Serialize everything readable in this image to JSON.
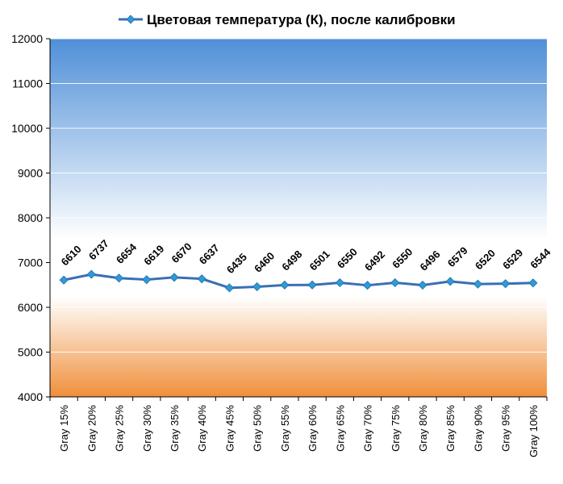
{
  "chart_data": {
    "type": "line",
    "title": "Цветовая температура (К), после калибровки",
    "xlabel": "",
    "ylabel": "",
    "ylim": [
      4000,
      12000
    ],
    "y_ticks": [
      4000,
      5000,
      6000,
      7000,
      8000,
      9000,
      10000,
      11000,
      12000
    ],
    "categories": [
      "Gray 15%",
      "Gray 20%",
      "Gray 25%",
      "Gray 30%",
      "Gray 35%",
      "Gray 40%",
      "Gray 45%",
      "Gray 50%",
      "Gray 55%",
      "Gray 60%",
      "Gray 65%",
      "Gray 70%",
      "Gray 75%",
      "Gray 80%",
      "Gray 85%",
      "Gray 90%",
      "Gray 95%",
      "Gray 100%"
    ],
    "series": [
      {
        "name": "Цветовая температура (К), после калибровки",
        "color": "#3a6fb5",
        "values": [
          6610,
          6737,
          6654,
          6619,
          6670,
          6637,
          6435,
          6460,
          6498,
          6501,
          6550,
          6492,
          6550,
          6496,
          6579,
          6520,
          6529,
          6544
        ]
      }
    ],
    "grid": true,
    "legend": "top",
    "colors": {
      "line": "#3a6fb5",
      "marker": "#2e9ad6",
      "bg_top": "#4f8fd8",
      "bg_mid": "#ffffff",
      "bg_bottom": "#f08f3a"
    }
  }
}
